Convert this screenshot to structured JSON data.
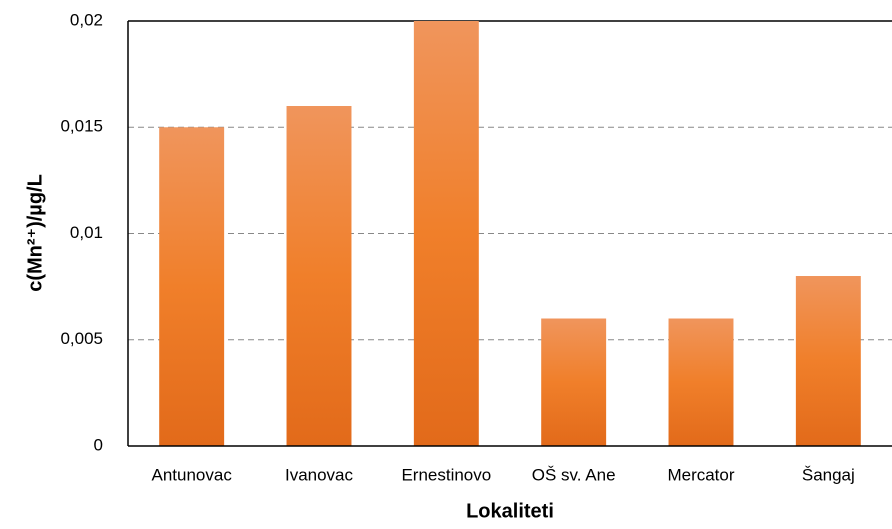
{
  "chart_data": {
    "type": "bar",
    "categories": [
      "Antunovac",
      "Ivanovac",
      "Ernestinovo",
      "OŠ sv. Ane",
      "Mercator",
      "Šangaj"
    ],
    "values": [
      0.015,
      0.016,
      0.02,
      0.006,
      0.006,
      0.008
    ],
    "color": "#ed7d31",
    "ylim": [
      0,
      0.02
    ],
    "yticks": [
      0,
      {
        "value": 0.005,
        "label": "0,005"
      },
      {
        "value": 0.01,
        "label": "0,01"
      },
      {
        "value": 0.015,
        "label": "0,015"
      },
      {
        "value": 0.02,
        "label": "0,02"
      }
    ],
    "grid": true,
    "x_label": "Lokaliteti",
    "y_label": "c(Mn²⁺)/µg/L"
  }
}
